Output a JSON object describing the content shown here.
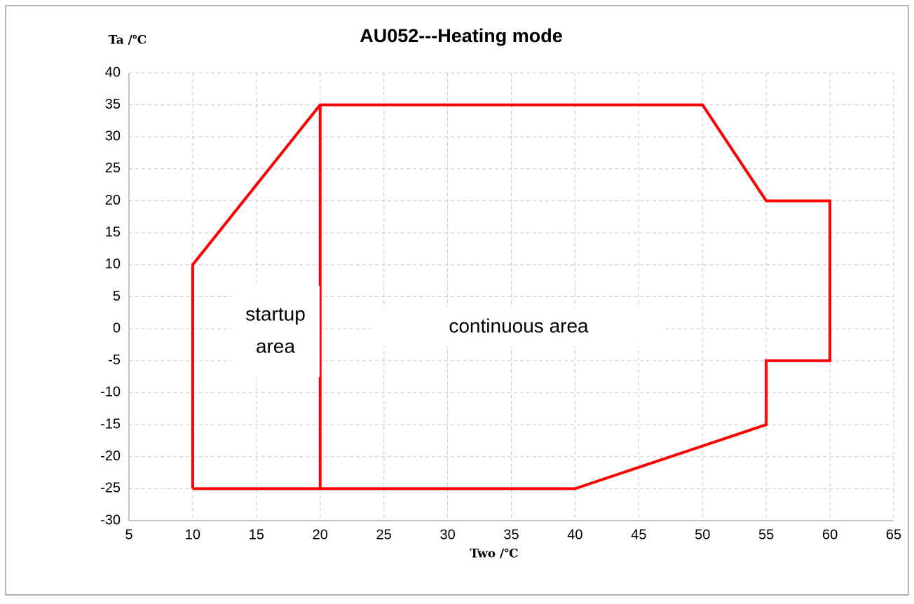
{
  "chart_data": {
    "type": "line",
    "title": "AU052---Heating mode",
    "xlabel": "Two /℃",
    "ylabel": "Ta /℃",
    "xlim": [
      5,
      65
    ],
    "xticks": [
      5,
      10,
      15,
      20,
      25,
      30,
      35,
      40,
      45,
      50,
      55,
      60,
      65
    ],
    "ylim": [
      -30,
      40
    ],
    "yticks": [
      -30,
      -25,
      -20,
      -15,
      -10,
      -5,
      0,
      5,
      10,
      15,
      20,
      25,
      30,
      35,
      40
    ],
    "grid": true,
    "series": [
      {
        "color": "#ff0000",
        "x": [
          10,
          10,
          20,
          50,
          55,
          60,
          60,
          55,
          55,
          40,
          10
        ],
        "values": [
          -25,
          10,
          35,
          35,
          20,
          20,
          -5,
          -5,
          -15,
          -25,
          -25
        ]
      },
      {
        "color": "#ff0000",
        "x": [
          20,
          20
        ],
        "values": [
          -25,
          35
        ]
      }
    ],
    "annotations": [
      {
        "lines": [
          "startup",
          "area"
        ]
      },
      {
        "lines": [
          "continuous area"
        ]
      }
    ]
  }
}
